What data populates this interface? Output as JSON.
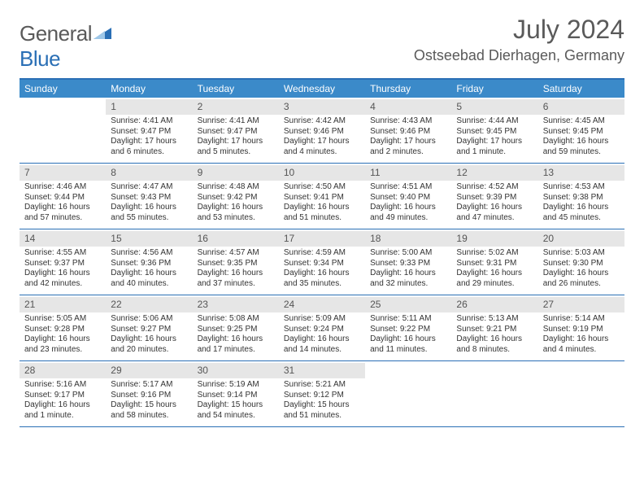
{
  "brand": {
    "part1": "General",
    "part2": "Blue"
  },
  "title": "July 2024",
  "subtitle": "Ostseebad Dierhagen, Germany",
  "colors": {
    "header_bg": "#3b8ac9",
    "border": "#2a6fb5",
    "daynum_bg": "#e6e6e6",
    "text": "#333333"
  },
  "day_names": [
    "Sunday",
    "Monday",
    "Tuesday",
    "Wednesday",
    "Thursday",
    "Friday",
    "Saturday"
  ],
  "weeks": [
    [
      {
        "blank": true
      },
      {
        "n": "1",
        "sunrise": "Sunrise: 4:41 AM",
        "sunset": "Sunset: 9:47 PM",
        "day1": "Daylight: 17 hours",
        "day2": "and 6 minutes."
      },
      {
        "n": "2",
        "sunrise": "Sunrise: 4:41 AM",
        "sunset": "Sunset: 9:47 PM",
        "day1": "Daylight: 17 hours",
        "day2": "and 5 minutes."
      },
      {
        "n": "3",
        "sunrise": "Sunrise: 4:42 AM",
        "sunset": "Sunset: 9:46 PM",
        "day1": "Daylight: 17 hours",
        "day2": "and 4 minutes."
      },
      {
        "n": "4",
        "sunrise": "Sunrise: 4:43 AM",
        "sunset": "Sunset: 9:46 PM",
        "day1": "Daylight: 17 hours",
        "day2": "and 2 minutes."
      },
      {
        "n": "5",
        "sunrise": "Sunrise: 4:44 AM",
        "sunset": "Sunset: 9:45 PM",
        "day1": "Daylight: 17 hours",
        "day2": "and 1 minute."
      },
      {
        "n": "6",
        "sunrise": "Sunrise: 4:45 AM",
        "sunset": "Sunset: 9:45 PM",
        "day1": "Daylight: 16 hours",
        "day2": "and 59 minutes."
      }
    ],
    [
      {
        "n": "7",
        "sunrise": "Sunrise: 4:46 AM",
        "sunset": "Sunset: 9:44 PM",
        "day1": "Daylight: 16 hours",
        "day2": "and 57 minutes."
      },
      {
        "n": "8",
        "sunrise": "Sunrise: 4:47 AM",
        "sunset": "Sunset: 9:43 PM",
        "day1": "Daylight: 16 hours",
        "day2": "and 55 minutes."
      },
      {
        "n": "9",
        "sunrise": "Sunrise: 4:48 AM",
        "sunset": "Sunset: 9:42 PM",
        "day1": "Daylight: 16 hours",
        "day2": "and 53 minutes."
      },
      {
        "n": "10",
        "sunrise": "Sunrise: 4:50 AM",
        "sunset": "Sunset: 9:41 PM",
        "day1": "Daylight: 16 hours",
        "day2": "and 51 minutes."
      },
      {
        "n": "11",
        "sunrise": "Sunrise: 4:51 AM",
        "sunset": "Sunset: 9:40 PM",
        "day1": "Daylight: 16 hours",
        "day2": "and 49 minutes."
      },
      {
        "n": "12",
        "sunrise": "Sunrise: 4:52 AM",
        "sunset": "Sunset: 9:39 PM",
        "day1": "Daylight: 16 hours",
        "day2": "and 47 minutes."
      },
      {
        "n": "13",
        "sunrise": "Sunrise: 4:53 AM",
        "sunset": "Sunset: 9:38 PM",
        "day1": "Daylight: 16 hours",
        "day2": "and 45 minutes."
      }
    ],
    [
      {
        "n": "14",
        "sunrise": "Sunrise: 4:55 AM",
        "sunset": "Sunset: 9:37 PM",
        "day1": "Daylight: 16 hours",
        "day2": "and 42 minutes."
      },
      {
        "n": "15",
        "sunrise": "Sunrise: 4:56 AM",
        "sunset": "Sunset: 9:36 PM",
        "day1": "Daylight: 16 hours",
        "day2": "and 40 minutes."
      },
      {
        "n": "16",
        "sunrise": "Sunrise: 4:57 AM",
        "sunset": "Sunset: 9:35 PM",
        "day1": "Daylight: 16 hours",
        "day2": "and 37 minutes."
      },
      {
        "n": "17",
        "sunrise": "Sunrise: 4:59 AM",
        "sunset": "Sunset: 9:34 PM",
        "day1": "Daylight: 16 hours",
        "day2": "and 35 minutes."
      },
      {
        "n": "18",
        "sunrise": "Sunrise: 5:00 AM",
        "sunset": "Sunset: 9:33 PM",
        "day1": "Daylight: 16 hours",
        "day2": "and 32 minutes."
      },
      {
        "n": "19",
        "sunrise": "Sunrise: 5:02 AM",
        "sunset": "Sunset: 9:31 PM",
        "day1": "Daylight: 16 hours",
        "day2": "and 29 minutes."
      },
      {
        "n": "20",
        "sunrise": "Sunrise: 5:03 AM",
        "sunset": "Sunset: 9:30 PM",
        "day1": "Daylight: 16 hours",
        "day2": "and 26 minutes."
      }
    ],
    [
      {
        "n": "21",
        "sunrise": "Sunrise: 5:05 AM",
        "sunset": "Sunset: 9:28 PM",
        "day1": "Daylight: 16 hours",
        "day2": "and 23 minutes."
      },
      {
        "n": "22",
        "sunrise": "Sunrise: 5:06 AM",
        "sunset": "Sunset: 9:27 PM",
        "day1": "Daylight: 16 hours",
        "day2": "and 20 minutes."
      },
      {
        "n": "23",
        "sunrise": "Sunrise: 5:08 AM",
        "sunset": "Sunset: 9:25 PM",
        "day1": "Daylight: 16 hours",
        "day2": "and 17 minutes."
      },
      {
        "n": "24",
        "sunrise": "Sunrise: 5:09 AM",
        "sunset": "Sunset: 9:24 PM",
        "day1": "Daylight: 16 hours",
        "day2": "and 14 minutes."
      },
      {
        "n": "25",
        "sunrise": "Sunrise: 5:11 AM",
        "sunset": "Sunset: 9:22 PM",
        "day1": "Daylight: 16 hours",
        "day2": "and 11 minutes."
      },
      {
        "n": "26",
        "sunrise": "Sunrise: 5:13 AM",
        "sunset": "Sunset: 9:21 PM",
        "day1": "Daylight: 16 hours",
        "day2": "and 8 minutes."
      },
      {
        "n": "27",
        "sunrise": "Sunrise: 5:14 AM",
        "sunset": "Sunset: 9:19 PM",
        "day1": "Daylight: 16 hours",
        "day2": "and 4 minutes."
      }
    ],
    [
      {
        "n": "28",
        "sunrise": "Sunrise: 5:16 AM",
        "sunset": "Sunset: 9:17 PM",
        "day1": "Daylight: 16 hours",
        "day2": "and 1 minute."
      },
      {
        "n": "29",
        "sunrise": "Sunrise: 5:17 AM",
        "sunset": "Sunset: 9:16 PM",
        "day1": "Daylight: 15 hours",
        "day2": "and 58 minutes."
      },
      {
        "n": "30",
        "sunrise": "Sunrise: 5:19 AM",
        "sunset": "Sunset: 9:14 PM",
        "day1": "Daylight: 15 hours",
        "day2": "and 54 minutes."
      },
      {
        "n": "31",
        "sunrise": "Sunrise: 5:21 AM",
        "sunset": "Sunset: 9:12 PM",
        "day1": "Daylight: 15 hours",
        "day2": "and 51 minutes."
      },
      {
        "blank": true
      },
      {
        "blank": true
      },
      {
        "blank": true
      }
    ]
  ]
}
